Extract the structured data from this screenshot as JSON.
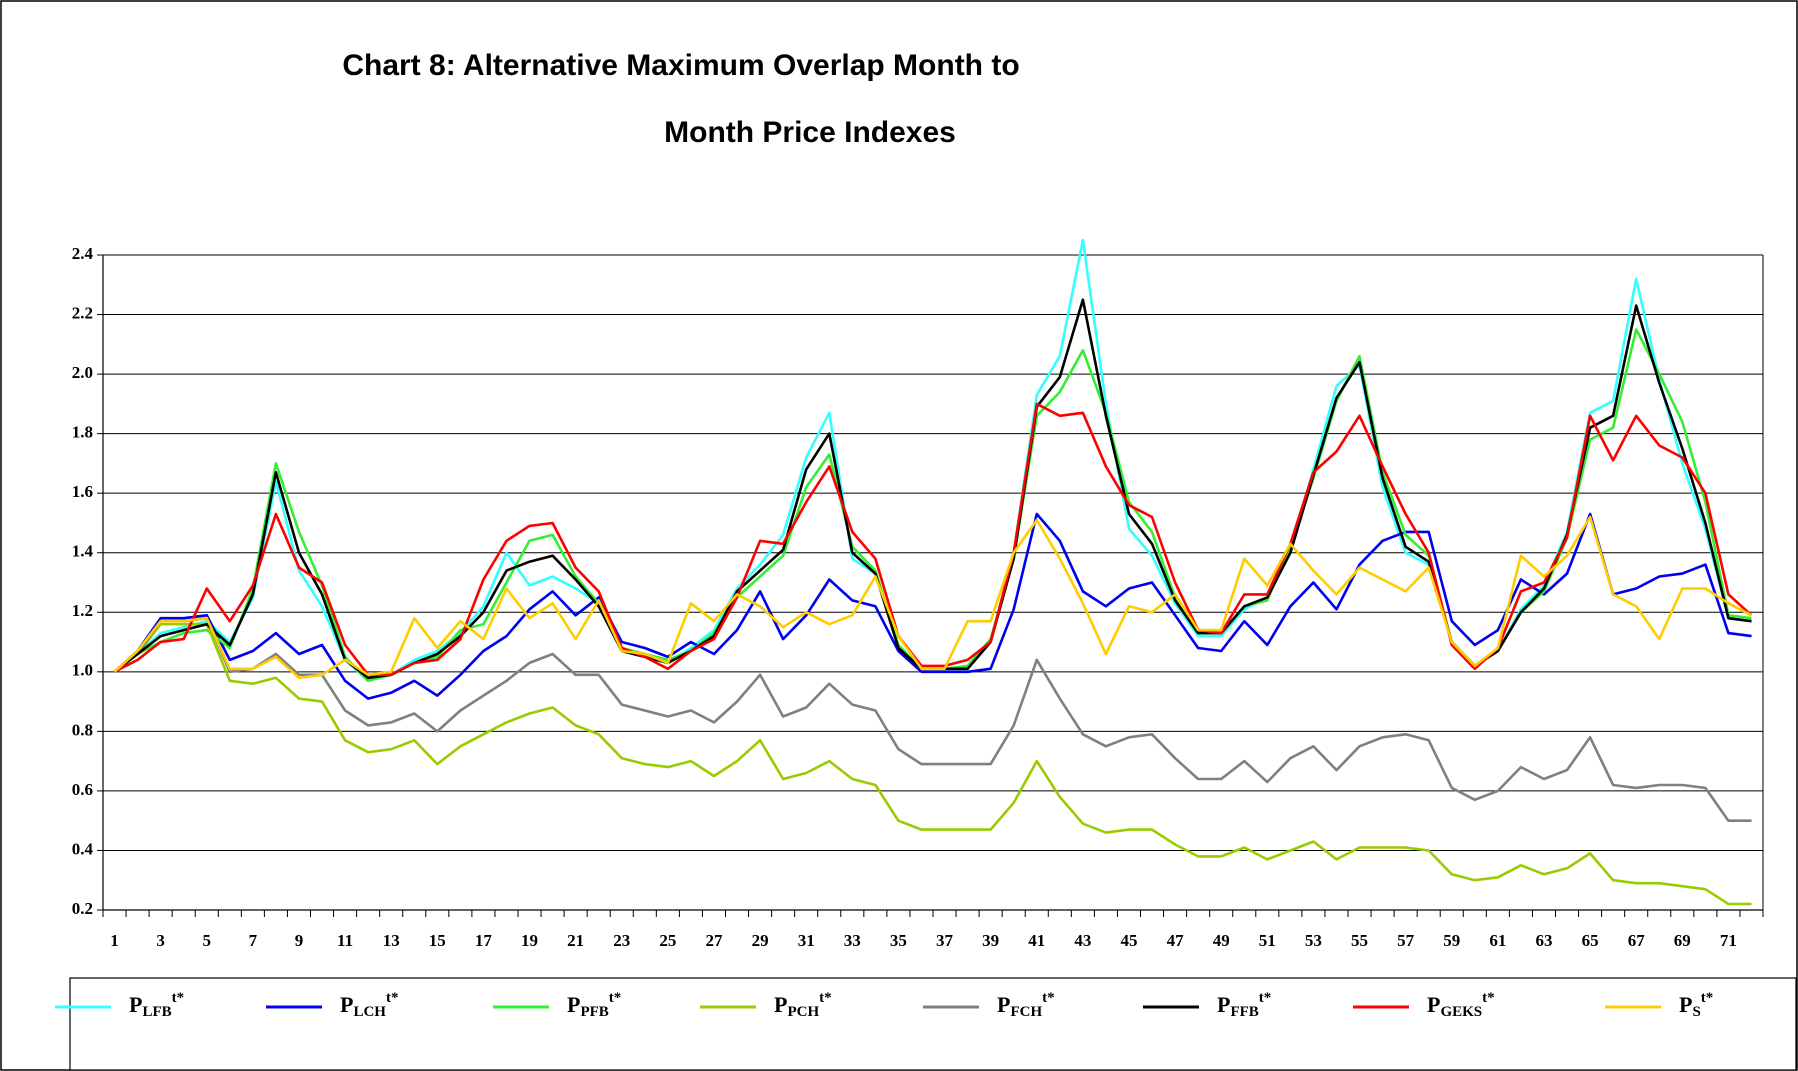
{
  "chart_data": {
    "type": "line",
    "title": [
      "Chart 8: Alternative Maximum Overlap Month to",
      "Month Price Indexes"
    ],
    "categories": [
      1,
      null,
      3,
      null,
      5,
      null,
      7,
      null,
      9,
      null,
      11,
      null,
      13,
      null,
      15,
      null,
      17,
      null,
      19,
      null,
      21,
      null,
      23,
      null,
      25,
      null,
      27,
      null,
      29,
      null,
      31,
      null,
      33,
      null,
      35,
      null,
      37,
      null,
      39,
      null,
      41,
      null,
      43,
      null,
      45,
      null,
      47,
      null,
      49,
      null,
      51,
      null,
      53,
      null,
      55,
      null,
      57,
      null,
      59,
      null,
      61,
      null,
      63,
      null,
      65,
      null,
      67,
      null,
      69,
      null,
      71,
      null
    ],
    "ylim": [
      0.2,
      2.4
    ],
    "yticks": [
      0.2,
      0.4,
      0.6,
      0.8,
      {
        "value": 1,
        "label": "1.0"
      },
      1.2,
      1.4,
      1.6,
      1.8,
      {
        "value": 2,
        "label": "2.0"
      },
      2.2,
      2.4
    ],
    "grid": true,
    "legend": "bottom",
    "series": [
      {
        "name": "P",
        "subscript": "LFB",
        "superscript": "t*",
        "color": "#33ffff",
        "values": [
          1.0,
          1.06,
          1.13,
          1.15,
          1.17,
          1.1,
          1.25,
          1.64,
          1.34,
          1.22,
          1.04,
          0.97,
          0.99,
          1.04,
          1.07,
          1.13,
          1.22,
          1.4,
          1.29,
          1.32,
          1.28,
          1.23,
          1.07,
          1.05,
          1.03,
          1.08,
          1.14,
          1.28,
          1.36,
          1.46,
          1.72,
          1.87,
          1.38,
          1.33,
          1.08,
          1.01,
          1.01,
          1.01,
          1.1,
          1.4,
          1.93,
          2.06,
          2.45,
          1.9,
          1.48,
          1.39,
          1.23,
          1.12,
          1.12,
          1.21,
          1.25,
          1.41,
          1.68,
          1.96,
          2.03,
          1.62,
          1.4,
          1.36,
          1.1,
          1.02,
          1.07,
          1.21,
          1.29,
          1.47,
          1.87,
          1.91,
          2.32,
          1.98,
          1.7,
          1.48,
          1.18,
          1.17
        ]
      },
      {
        "name": "P",
        "subscript": "LCH",
        "superscript": "t*",
        "color": "#0000ee",
        "values": [
          1.0,
          1.07,
          1.18,
          1.18,
          1.19,
          1.04,
          1.07,
          1.13,
          1.06,
          1.09,
          0.97,
          0.91,
          0.93,
          0.97,
          0.92,
          0.99,
          1.07,
          1.12,
          1.21,
          1.27,
          1.19,
          1.25,
          1.1,
          1.08,
          1.05,
          1.1,
          1.06,
          1.14,
          1.27,
          1.11,
          1.19,
          1.31,
          1.24,
          1.22,
          1.07,
          1.0,
          1.0,
          1.0,
          1.01,
          1.21,
          1.53,
          1.44,
          1.27,
          1.22,
          1.28,
          1.3,
          1.19,
          1.08,
          1.07,
          1.17,
          1.09,
          1.22,
          1.3,
          1.21,
          1.36,
          1.44,
          1.47,
          1.47,
          1.17,
          1.09,
          1.14,
          1.31,
          1.26,
          1.33,
          1.53,
          1.26,
          1.28,
          1.32,
          1.33,
          1.36,
          1.13,
          1.12
        ]
      },
      {
        "name": "P",
        "subscript": "PFB",
        "superscript": "t*",
        "color": "#33ee33",
        "values": [
          1.0,
          1.06,
          1.1,
          1.13,
          1.14,
          1.08,
          1.28,
          1.7,
          1.47,
          1.29,
          1.05,
          0.97,
          0.99,
          1.03,
          1.05,
          1.14,
          1.16,
          1.3,
          1.44,
          1.46,
          1.32,
          1.23,
          1.08,
          1.06,
          1.04,
          1.07,
          1.13,
          1.25,
          1.32,
          1.39,
          1.62,
          1.73,
          1.42,
          1.34,
          1.09,
          1.01,
          1.01,
          1.02,
          1.11,
          1.38,
          1.86,
          1.94,
          2.08,
          1.87,
          1.57,
          1.47,
          1.25,
          1.13,
          1.13,
          1.22,
          1.24,
          1.42,
          1.65,
          1.91,
          2.06,
          1.67,
          1.46,
          1.39,
          1.1,
          1.02,
          1.07,
          1.2,
          1.27,
          1.45,
          1.78,
          1.82,
          2.15,
          2.0,
          1.84,
          1.57,
          1.19,
          1.18
        ]
      },
      {
        "name": "P",
        "subscript": "PCH",
        "superscript": "t*",
        "color": "#99cc00",
        "values": [
          1.0,
          1.06,
          1.16,
          1.16,
          1.16,
          0.97,
          0.96,
          0.98,
          0.91,
          0.9,
          0.77,
          0.73,
          0.74,
          0.77,
          0.69,
          0.75,
          0.79,
          0.83,
          0.86,
          0.88,
          0.82,
          0.79,
          0.71,
          0.69,
          0.68,
          0.7,
          0.65,
          0.7,
          0.77,
          0.64,
          0.66,
          0.7,
          0.64,
          0.62,
          0.5,
          0.47,
          0.47,
          0.47,
          0.47,
          0.56,
          0.7,
          0.58,
          0.49,
          0.46,
          0.47,
          0.47,
          0.42,
          0.38,
          0.38,
          0.41,
          0.37,
          0.4,
          0.43,
          0.37,
          0.41,
          0.41,
          0.41,
          0.4,
          0.32,
          0.3,
          0.31,
          0.35,
          0.32,
          0.34,
          0.39,
          0.3,
          0.29,
          0.29,
          0.28,
          0.27,
          0.22,
          0.22
        ]
      },
      {
        "name": "P",
        "subscript": "FCH",
        "superscript": "t*",
        "color": "#808080",
        "values": [
          1.0,
          1.06,
          1.17,
          1.17,
          1.18,
          1.0,
          1.01,
          1.06,
          0.99,
          0.99,
          0.87,
          0.82,
          0.83,
          0.86,
          0.8,
          0.87,
          0.92,
          0.97,
          1.03,
          1.06,
          0.99,
          0.99,
          0.89,
          0.87,
          0.85,
          0.87,
          0.83,
          0.9,
          0.99,
          0.85,
          0.88,
          0.96,
          0.89,
          0.87,
          0.74,
          0.69,
          0.69,
          0.69,
          0.69,
          0.82,
          1.04,
          0.91,
          0.79,
          0.75,
          0.78,
          0.79,
          0.71,
          0.64,
          0.64,
          0.7,
          0.63,
          0.71,
          0.75,
          0.67,
          0.75,
          0.78,
          0.79,
          0.77,
          0.61,
          0.57,
          0.6,
          0.68,
          0.64,
          0.67,
          0.78,
          0.62,
          0.61,
          0.62,
          0.62,
          0.61,
          0.5,
          0.5
        ]
      },
      {
        "name": "P",
        "subscript": "FFB",
        "superscript": "t*",
        "color": "#000000",
        "values": [
          1.0,
          1.06,
          1.12,
          1.14,
          1.16,
          1.09,
          1.26,
          1.67,
          1.4,
          1.26,
          1.04,
          0.98,
          0.99,
          1.03,
          1.06,
          1.12,
          1.2,
          1.34,
          1.37,
          1.39,
          1.31,
          1.22,
          1.07,
          1.05,
          1.03,
          1.07,
          1.12,
          1.27,
          1.34,
          1.41,
          1.68,
          1.8,
          1.4,
          1.33,
          1.08,
          1.01,
          1.01,
          1.01,
          1.1,
          1.38,
          1.89,
          1.99,
          2.25,
          1.86,
          1.53,
          1.43,
          1.24,
          1.13,
          1.13,
          1.22,
          1.25,
          1.4,
          1.66,
          1.92,
          2.04,
          1.65,
          1.42,
          1.37,
          1.1,
          1.02,
          1.07,
          1.2,
          1.28,
          1.46,
          1.82,
          1.86,
          2.23,
          1.97,
          1.75,
          1.5,
          1.18,
          1.17
        ]
      },
      {
        "name": "P",
        "subscript": "GEKS",
        "superscript": "t*",
        "color": "#ff0000",
        "values": [
          1.0,
          1.04,
          1.1,
          1.11,
          1.28,
          1.17,
          1.29,
          1.53,
          1.35,
          1.3,
          1.09,
          0.99,
          0.99,
          1.03,
          1.04,
          1.11,
          1.31,
          1.44,
          1.49,
          1.5,
          1.35,
          1.27,
          1.08,
          1.05,
          1.01,
          1.07,
          1.11,
          1.25,
          1.44,
          1.43,
          1.57,
          1.69,
          1.47,
          1.38,
          1.12,
          1.02,
          1.02,
          1.04,
          1.1,
          1.4,
          1.9,
          1.86,
          1.87,
          1.69,
          1.56,
          1.52,
          1.3,
          1.14,
          1.13,
          1.26,
          1.26,
          1.43,
          1.67,
          1.74,
          1.86,
          1.69,
          1.53,
          1.4,
          1.09,
          1.01,
          1.08,
          1.27,
          1.3,
          1.45,
          1.86,
          1.71,
          1.86,
          1.76,
          1.72,
          1.6,
          1.26,
          1.19
        ]
      },
      {
        "name": "P",
        "subscript": "S",
        "superscript": "t*",
        "color": "#ffcc00",
        "values": [
          1.0,
          1.07,
          1.17,
          1.17,
          1.18,
          1.01,
          1.01,
          1.05,
          0.98,
          0.99,
          1.04,
          0.99,
          1.0,
          1.18,
          1.08,
          1.17,
          1.11,
          1.28,
          1.18,
          1.23,
          1.11,
          1.24,
          1.07,
          1.06,
          1.03,
          1.23,
          1.17,
          1.26,
          1.22,
          1.15,
          1.2,
          1.16,
          1.19,
          1.32,
          1.12,
          1.01,
          1.01,
          1.17,
          1.17,
          1.4,
          1.51,
          1.38,
          1.23,
          1.06,
          1.22,
          1.2,
          1.26,
          1.14,
          1.14,
          1.38,
          1.29,
          1.43,
          1.34,
          1.26,
          1.35,
          1.31,
          1.27,
          1.35,
          1.1,
          1.02,
          1.08,
          1.39,
          1.32,
          1.39,
          1.52,
          1.26,
          1.22,
          1.11,
          1.28,
          1.28,
          1.23,
          1.19
        ]
      }
    ]
  }
}
